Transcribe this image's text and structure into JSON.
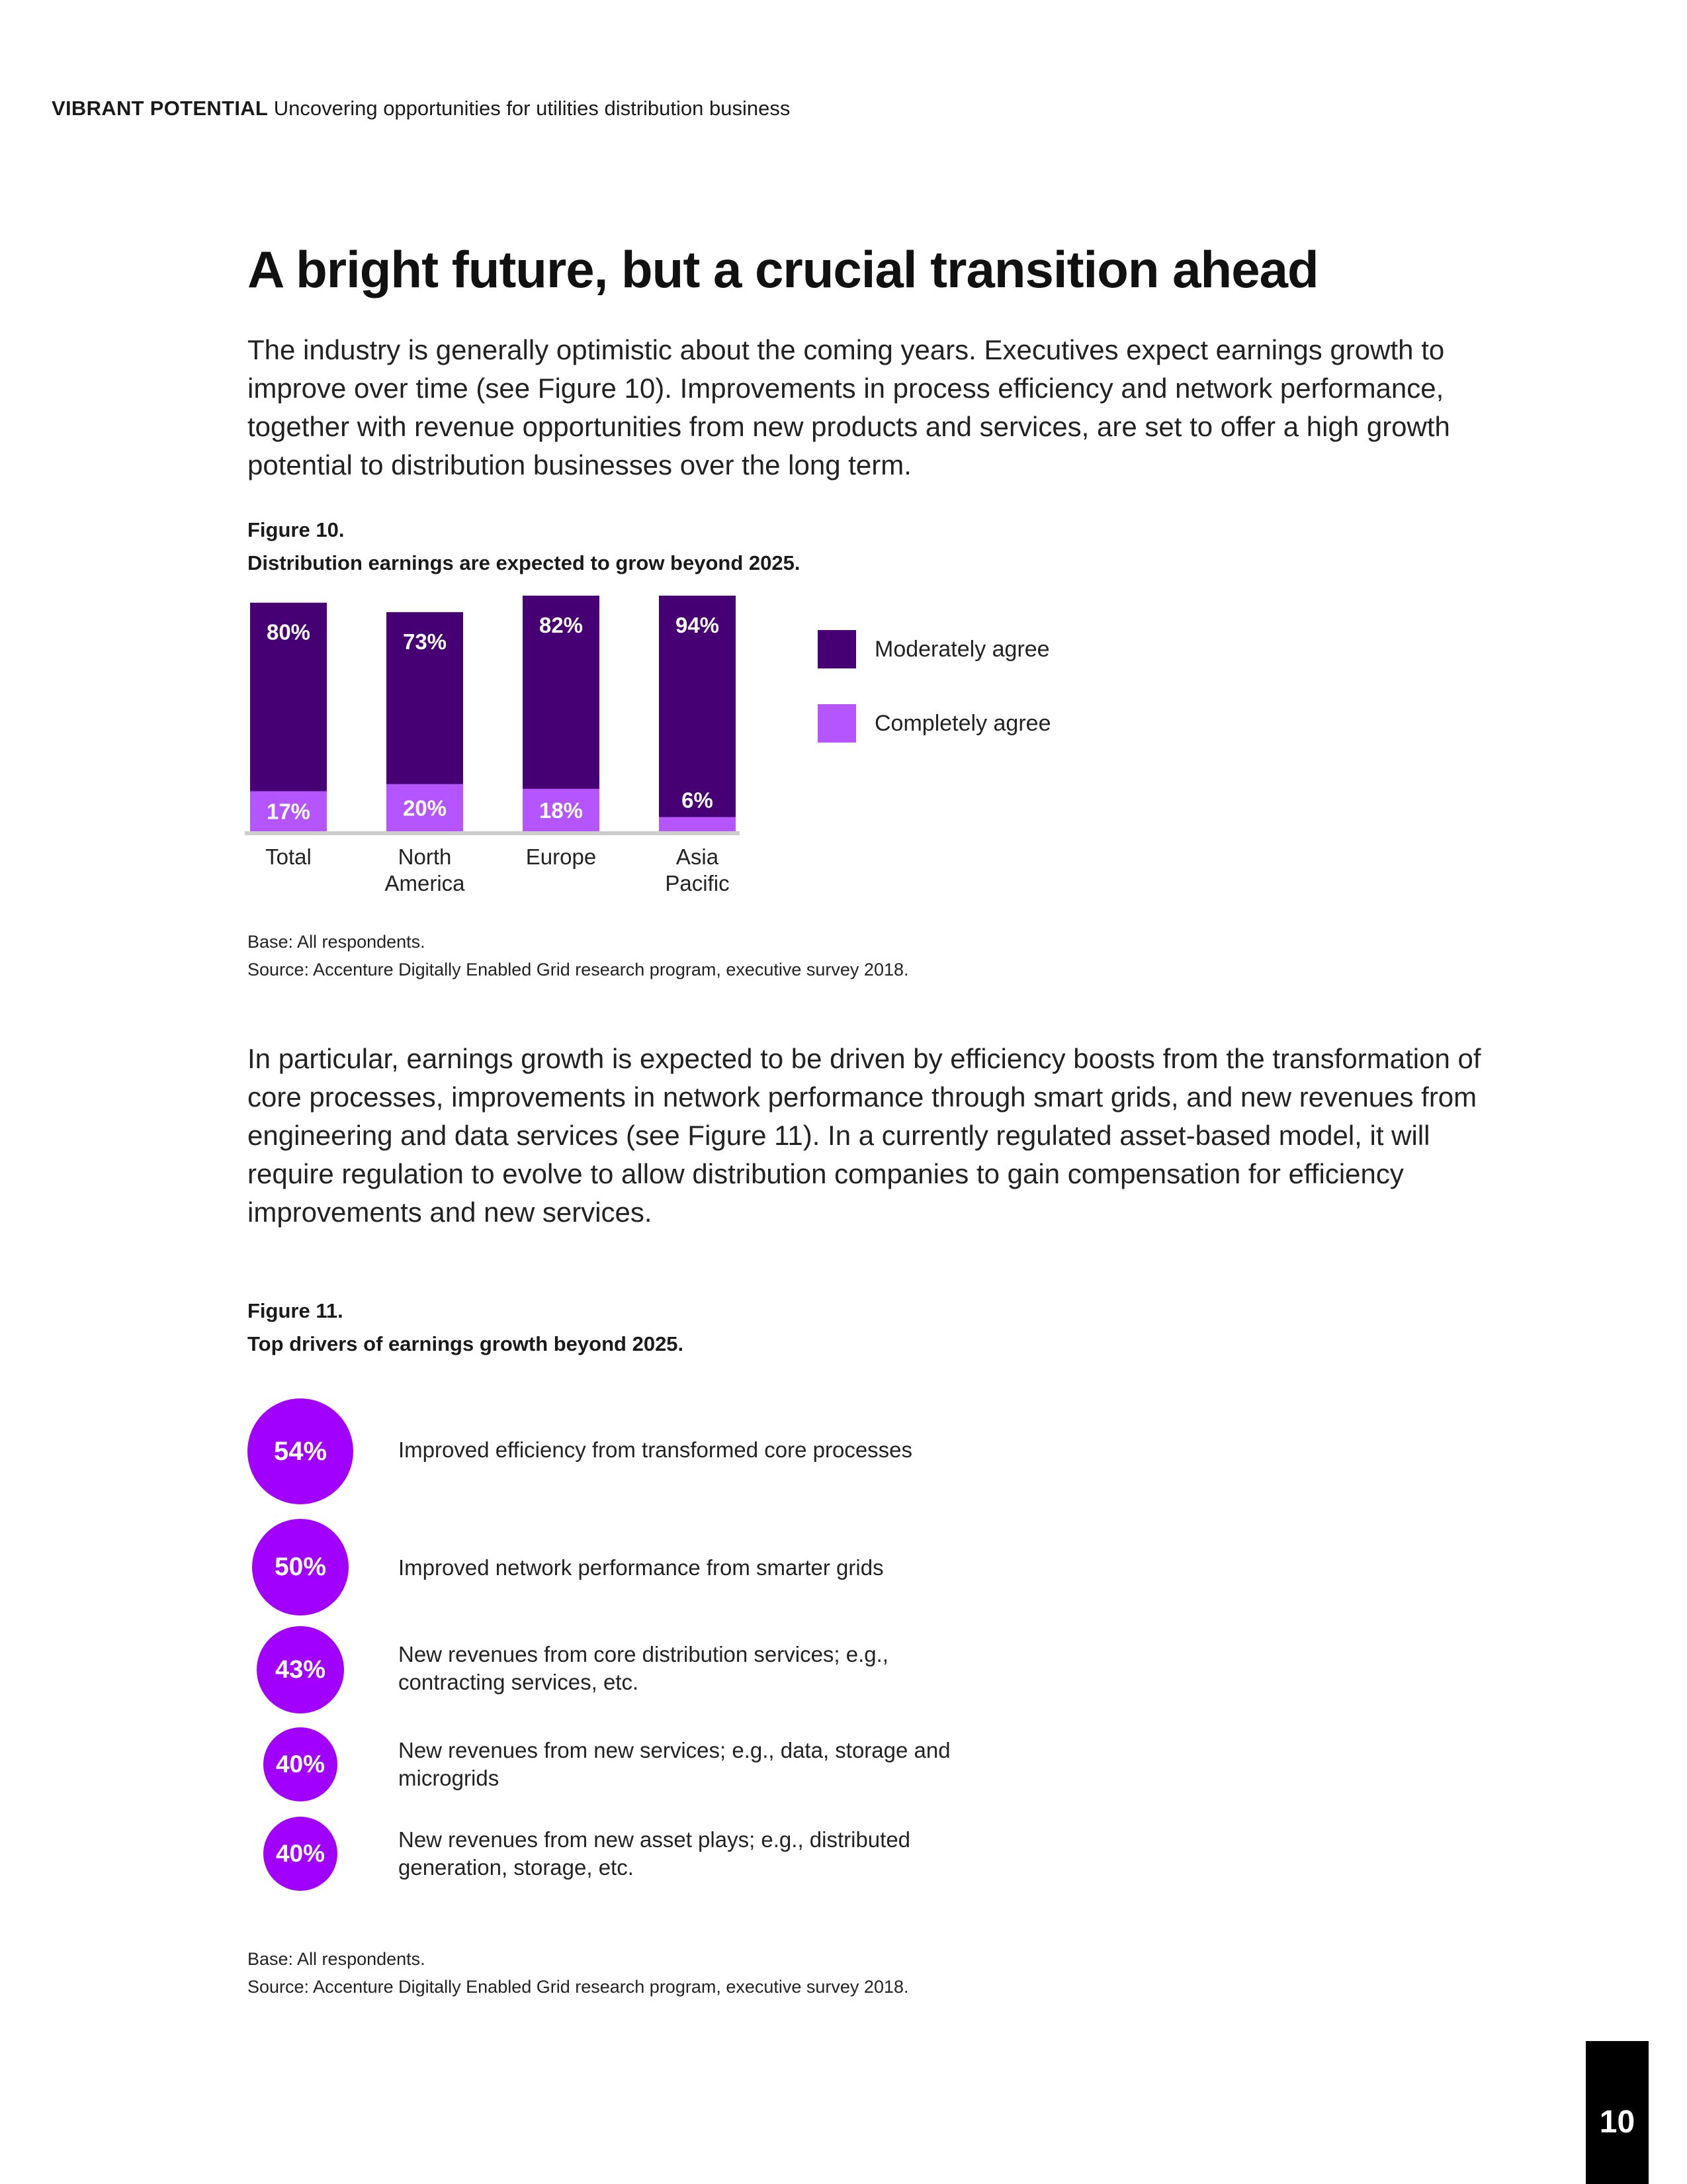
{
  "header": {
    "brand": "VIBRANT POTENTIAL",
    "subtitle": "Uncovering opportunities for utilities distribution business"
  },
  "title": "A bright future, but a crucial transition ahead",
  "paragraph1": "The industry is generally optimistic about the coming years. Executives expect earnings growth to improve over time (see Figure 10). Improvements in process efficiency and network performance, together with revenue opportunities from new products and services, are set to offer a high growth potential to distribution businesses over the long term.",
  "figure10": {
    "number": "Figure 10.",
    "caption": "Distribution earnings are expected to grow beyond 2025.",
    "base": "Base: All respondents.",
    "source": "Source: Accenture Digitally Enabled Grid research program, executive survey 2018."
  },
  "chart_data": {
    "type": "bar",
    "stacked": true,
    "title": "Distribution earnings are expected to grow beyond 2025.",
    "categories": [
      [
        "Total"
      ],
      [
        "North",
        "America"
      ],
      [
        "Europe"
      ],
      [
        "Asia",
        "Pacific"
      ]
    ],
    "series": [
      {
        "name": "Completely agree",
        "values": [
          17,
          20,
          18,
          6
        ],
        "labels": [
          "17%",
          "20%",
          "18%",
          "6%"
        ],
        "color": "#b455ff"
      },
      {
        "name": "Moderately agree",
        "values": [
          80,
          73,
          82,
          94
        ],
        "labels": [
          "80%",
          "73%",
          "82%",
          "94%"
        ],
        "color": "#460073"
      }
    ],
    "ylim": [
      0,
      100
    ],
    "xlabel": "",
    "ylabel": "",
    "grid": false,
    "legend": "right",
    "legend_entries": [
      "Moderately agree",
      "Completely agree"
    ]
  },
  "paragraph2": "In particular, earnings growth is expected to be driven by efficiency boosts from the transformation of core processes, improvements in network performance through smart grids, and new revenues from engineering and data services (see Figure 11). In a currently regulated asset-based model, it will require regulation to evolve to allow distribution companies to gain compensation for efficiency improvements and new services.",
  "figure11": {
    "number": "Figure 11.",
    "caption": "Top drivers of earnings growth beyond 2025.",
    "drivers": [
      {
        "value": 54,
        "label": "54%",
        "text": "Improved efficiency from transformed core processes"
      },
      {
        "value": 50,
        "label": "50%",
        "text": "Improved network performance from smarter grids"
      },
      {
        "value": 43,
        "label": "43%",
        "text": "New revenues from core distribution services; e.g., contracting services, etc."
      },
      {
        "value": 40,
        "label": "40%",
        "text": "New revenues from new services; e.g., data, storage and microgrids"
      },
      {
        "value": 40,
        "label": "40%",
        "text": "New revenues from new asset plays; e.g., distributed generation, storage, etc."
      }
    ],
    "base": "Base: All respondents.",
    "source": "Source: Accenture Digitally Enabled Grid research program, executive survey 2018.",
    "circle_color": "#a100ff"
  },
  "page_number": "10"
}
